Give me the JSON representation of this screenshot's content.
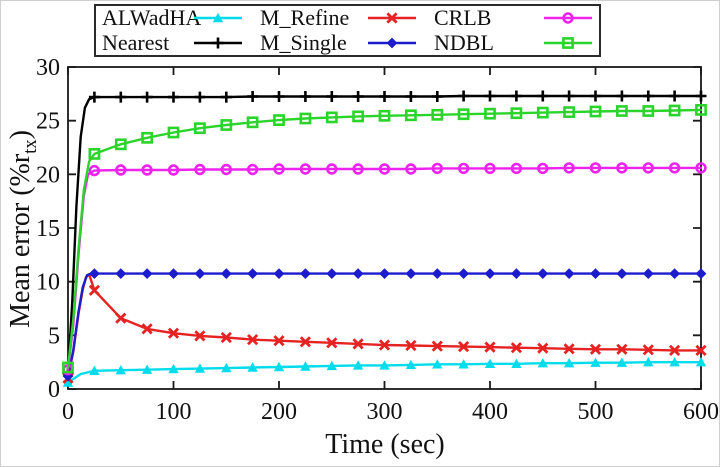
{
  "figure": {
    "background": "#ffffff",
    "axis_color": "#1a1a1a",
    "outer_border_color": "#cfcfcf"
  },
  "legend": {
    "border_color": "#2a2a2a",
    "items": [
      {
        "label": "ALWadHA",
        "series": "alwadha"
      },
      {
        "label": "M_Refine",
        "series": "m_refine"
      },
      {
        "label": "CRLB",
        "series": "crlb"
      },
      {
        "label": "Nearest",
        "series": "nearest"
      },
      {
        "label": "M_Single",
        "series": "m_single"
      },
      {
        "label": "NDBL",
        "series": "ndbl"
      }
    ]
  },
  "chart_data": {
    "type": "line",
    "title": "",
    "xlabel": "Time (sec)",
    "ylabel": "Mean error (%r_tx)",
    "ylabel_main": "Mean error (%r",
    "ylabel_sub": "tx",
    "ylabel_close": ")",
    "xlim": [
      0,
      600
    ],
    "ylim": [
      0,
      30
    ],
    "xticks": [
      0,
      100,
      200,
      300,
      400,
      500,
      600
    ],
    "yticks": [
      0,
      5,
      10,
      15,
      20,
      25,
      30
    ],
    "grid": false,
    "legend_position": "top-outside",
    "marker_interval_sec": 25,
    "series": [
      {
        "name": "ALWadHA",
        "key": "alwadha",
        "color": "#00dcec",
        "marker": "triangle",
        "points": [
          [
            0,
            0.6
          ],
          [
            12,
            1.4
          ],
          [
            25,
            1.7
          ],
          [
            50,
            1.75
          ],
          [
            75,
            1.8
          ],
          [
            100,
            1.85
          ],
          [
            125,
            1.9
          ],
          [
            150,
            1.95
          ],
          [
            175,
            2.0
          ],
          [
            200,
            2.05
          ],
          [
            225,
            2.1
          ],
          [
            250,
            2.15
          ],
          [
            275,
            2.2
          ],
          [
            300,
            2.2
          ],
          [
            325,
            2.25
          ],
          [
            350,
            2.3
          ],
          [
            375,
            2.3
          ],
          [
            400,
            2.35
          ],
          [
            425,
            2.35
          ],
          [
            450,
            2.4
          ],
          [
            475,
            2.4
          ],
          [
            500,
            2.45
          ],
          [
            525,
            2.45
          ],
          [
            550,
            2.5
          ],
          [
            575,
            2.5
          ],
          [
            600,
            2.5
          ]
        ]
      },
      {
        "name": "Nearest",
        "key": "nearest",
        "color": "#000000",
        "marker": "plus",
        "points": [
          [
            0,
            1.5
          ],
          [
            4,
            8
          ],
          [
            8,
            17
          ],
          [
            12,
            23.5
          ],
          [
            16,
            26.2
          ],
          [
            20,
            27.0
          ],
          [
            25,
            27.2
          ],
          [
            50,
            27.2
          ],
          [
            75,
            27.2
          ],
          [
            100,
            27.2
          ],
          [
            125,
            27.2
          ],
          [
            150,
            27.2
          ],
          [
            175,
            27.25
          ],
          [
            200,
            27.25
          ],
          [
            225,
            27.25
          ],
          [
            250,
            27.25
          ],
          [
            275,
            27.25
          ],
          [
            300,
            27.25
          ],
          [
            325,
            27.25
          ],
          [
            350,
            27.25
          ],
          [
            375,
            27.3
          ],
          [
            400,
            27.3
          ],
          [
            425,
            27.3
          ],
          [
            450,
            27.3
          ],
          [
            475,
            27.3
          ],
          [
            500,
            27.3
          ],
          [
            525,
            27.3
          ],
          [
            550,
            27.3
          ],
          [
            575,
            27.3
          ],
          [
            600,
            27.3
          ]
        ]
      },
      {
        "name": "M_Refine",
        "key": "m_refine",
        "color": "#e62222",
        "marker": "x",
        "points": [
          [
            0,
            1.0
          ],
          [
            5,
            3.5
          ],
          [
            10,
            7.0
          ],
          [
            14,
            9.3
          ],
          [
            17,
            10.4
          ],
          [
            20,
            10.7
          ],
          [
            25,
            9.2
          ],
          [
            50,
            6.6
          ],
          [
            75,
            5.6
          ],
          [
            100,
            5.2
          ],
          [
            125,
            4.95
          ],
          [
            150,
            4.8
          ],
          [
            175,
            4.6
          ],
          [
            200,
            4.5
          ],
          [
            225,
            4.4
          ],
          [
            250,
            4.3
          ],
          [
            275,
            4.2
          ],
          [
            300,
            4.1
          ],
          [
            325,
            4.05
          ],
          [
            350,
            4.0
          ],
          [
            375,
            3.95
          ],
          [
            400,
            3.9
          ],
          [
            425,
            3.85
          ],
          [
            450,
            3.8
          ],
          [
            475,
            3.75
          ],
          [
            500,
            3.7
          ],
          [
            525,
            3.7
          ],
          [
            550,
            3.65
          ],
          [
            575,
            3.6
          ],
          [
            600,
            3.6
          ]
        ]
      },
      {
        "name": "M_Single",
        "key": "m_single",
        "color": "#1c1ccd",
        "marker": "diamond",
        "points": [
          [
            0,
            1.2
          ],
          [
            5,
            3.6
          ],
          [
            10,
            7.2
          ],
          [
            14,
            9.5
          ],
          [
            18,
            10.6
          ],
          [
            22,
            10.75
          ],
          [
            25,
            10.75
          ],
          [
            50,
            10.75
          ],
          [
            75,
            10.75
          ],
          [
            100,
            10.75
          ],
          [
            125,
            10.75
          ],
          [
            150,
            10.75
          ],
          [
            175,
            10.75
          ],
          [
            200,
            10.75
          ],
          [
            225,
            10.75
          ],
          [
            250,
            10.75
          ],
          [
            275,
            10.75
          ],
          [
            300,
            10.75
          ],
          [
            325,
            10.75
          ],
          [
            350,
            10.75
          ],
          [
            375,
            10.75
          ],
          [
            400,
            10.75
          ],
          [
            425,
            10.75
          ],
          [
            450,
            10.75
          ],
          [
            475,
            10.75
          ],
          [
            500,
            10.75
          ],
          [
            525,
            10.75
          ],
          [
            550,
            10.75
          ],
          [
            575,
            10.75
          ],
          [
            600,
            10.75
          ]
        ]
      },
      {
        "name": "CRLB",
        "key": "crlb",
        "color": "#ee22ee",
        "marker": "circle",
        "points": [
          [
            0,
            1.8
          ],
          [
            5,
            6.0
          ],
          [
            10,
            12.5
          ],
          [
            15,
            18.0
          ],
          [
            19,
            20.0
          ],
          [
            25,
            20.35
          ],
          [
            50,
            20.4
          ],
          [
            75,
            20.4
          ],
          [
            100,
            20.4
          ],
          [
            125,
            20.45
          ],
          [
            150,
            20.45
          ],
          [
            175,
            20.45
          ],
          [
            200,
            20.5
          ],
          [
            225,
            20.5
          ],
          [
            250,
            20.5
          ],
          [
            275,
            20.5
          ],
          [
            300,
            20.5
          ],
          [
            325,
            20.5
          ],
          [
            350,
            20.55
          ],
          [
            375,
            20.55
          ],
          [
            400,
            20.55
          ],
          [
            425,
            20.55
          ],
          [
            450,
            20.55
          ],
          [
            475,
            20.6
          ],
          [
            500,
            20.6
          ],
          [
            525,
            20.6
          ],
          [
            550,
            20.6
          ],
          [
            575,
            20.6
          ],
          [
            600,
            20.6
          ]
        ]
      },
      {
        "name": "NDBL",
        "key": "ndbl",
        "color": "#2bd42b",
        "marker": "square",
        "points": [
          [
            0,
            2.0
          ],
          [
            5,
            6.5
          ],
          [
            10,
            13.0
          ],
          [
            15,
            18.5
          ],
          [
            20,
            21.2
          ],
          [
            25,
            21.9
          ],
          [
            50,
            22.8
          ],
          [
            75,
            23.4
          ],
          [
            100,
            23.9
          ],
          [
            125,
            24.3
          ],
          [
            150,
            24.6
          ],
          [
            175,
            24.85
          ],
          [
            200,
            25.05
          ],
          [
            225,
            25.2
          ],
          [
            250,
            25.3
          ],
          [
            275,
            25.4
          ],
          [
            300,
            25.45
          ],
          [
            325,
            25.5
          ],
          [
            350,
            25.55
          ],
          [
            375,
            25.6
          ],
          [
            400,
            25.65
          ],
          [
            425,
            25.7
          ],
          [
            450,
            25.75
          ],
          [
            475,
            25.8
          ],
          [
            500,
            25.85
          ],
          [
            525,
            25.9
          ],
          [
            550,
            25.9
          ],
          [
            575,
            25.95
          ],
          [
            600,
            26.0
          ]
        ]
      }
    ]
  }
}
